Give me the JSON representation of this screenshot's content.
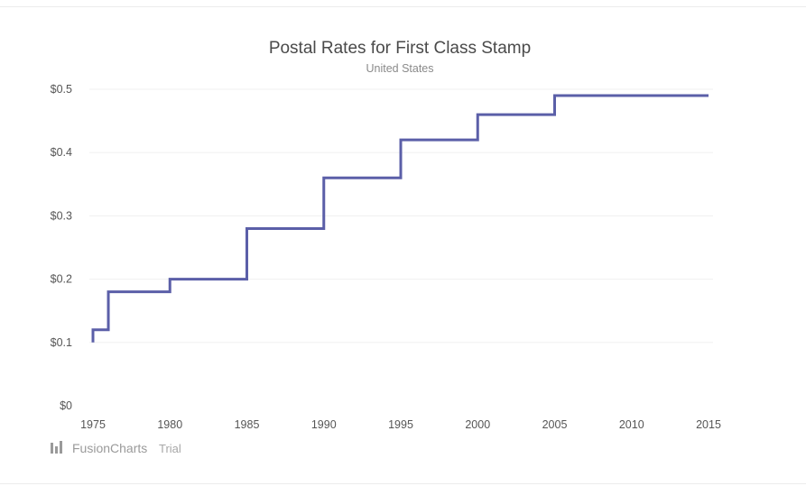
{
  "chart_data": {
    "type": "line",
    "step": true,
    "title": "Postal Rates for First Class Stamp",
    "subtitle": "United States",
    "x": [
      1975,
      1976,
      1980,
      1985,
      1990,
      1995,
      2000,
      2005,
      2010,
      2015
    ],
    "series": [
      {
        "values": [
          0.1,
          0.12,
          0.18,
          0.2,
          0.28,
          0.36,
          0.42,
          0.46,
          0.49,
          0.49
        ],
        "color": "#5b5fa8"
      }
    ],
    "xticks": [
      "1975",
      "1980",
      "1985",
      "1990",
      "1995",
      "2000",
      "2005",
      "2010",
      "2015"
    ],
    "yticks": [
      "$0",
      "$0.1",
      "$0.2",
      "$0.3",
      "$0.4",
      "$0.5"
    ],
    "xlim": [
      1975,
      2015
    ],
    "ylim": [
      0,
      0.5
    ],
    "grid": true
  },
  "watermark": {
    "brand": "FusionCharts",
    "suffix": "Trial"
  }
}
